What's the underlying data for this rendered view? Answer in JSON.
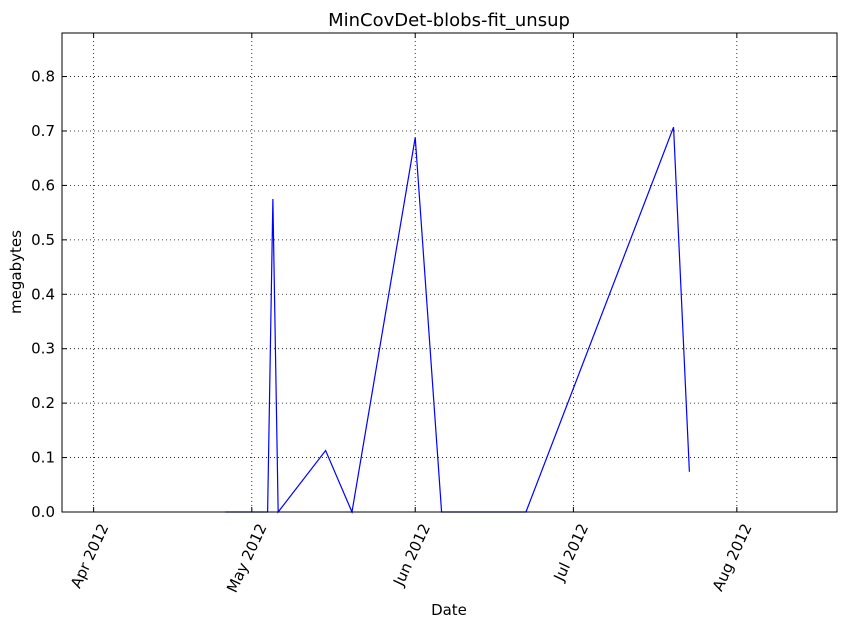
{
  "chart_data": {
    "type": "line",
    "title": "MinCovDet-blobs-fit_unsup",
    "xlabel": "Date",
    "ylabel": "megabytes",
    "xlim": [
      "2012-03-26",
      "2012-08-20"
    ],
    "ylim": [
      0,
      0.88
    ],
    "grid": true,
    "x_ticks": [
      {
        "date": "2012-04-01",
        "label": "Apr 2012"
      },
      {
        "date": "2012-05-01",
        "label": "May 2012"
      },
      {
        "date": "2012-06-01",
        "label": "Jun 2012"
      },
      {
        "date": "2012-07-01",
        "label": "Jul 2012"
      },
      {
        "date": "2012-08-01",
        "label": "Aug 2012"
      }
    ],
    "y_ticks": [
      {
        "value": 0.0,
        "label": "0.0"
      },
      {
        "value": 0.1,
        "label": "0.1"
      },
      {
        "value": 0.2,
        "label": "0.2"
      },
      {
        "value": 0.3,
        "label": "0.3"
      },
      {
        "value": 0.4,
        "label": "0.4"
      },
      {
        "value": 0.5,
        "label": "0.5"
      },
      {
        "value": 0.6,
        "label": "0.6"
      },
      {
        "value": 0.7,
        "label": "0.7"
      },
      {
        "value": 0.8,
        "label": "0.8"
      }
    ],
    "series": [
      {
        "color": "#0000ff",
        "points": [
          {
            "x": "2012-04-26",
            "y": 0.0
          },
          {
            "x": "2012-05-04",
            "y": 0.0
          },
          {
            "x": "2012-05-05",
            "y": 0.575
          },
          {
            "x": "2012-05-06",
            "y": 0.0
          },
          {
            "x": "2012-05-15",
            "y": 0.113
          },
          {
            "x": "2012-05-20",
            "y": 0.0
          },
          {
            "x": "2012-06-01",
            "y": 0.688
          },
          {
            "x": "2012-06-06",
            "y": 0.0
          },
          {
            "x": "2012-06-22",
            "y": 0.0
          },
          {
            "x": "2012-07-20",
            "y": 0.707
          },
          {
            "x": "2012-07-23",
            "y": 0.074
          }
        ]
      }
    ]
  }
}
